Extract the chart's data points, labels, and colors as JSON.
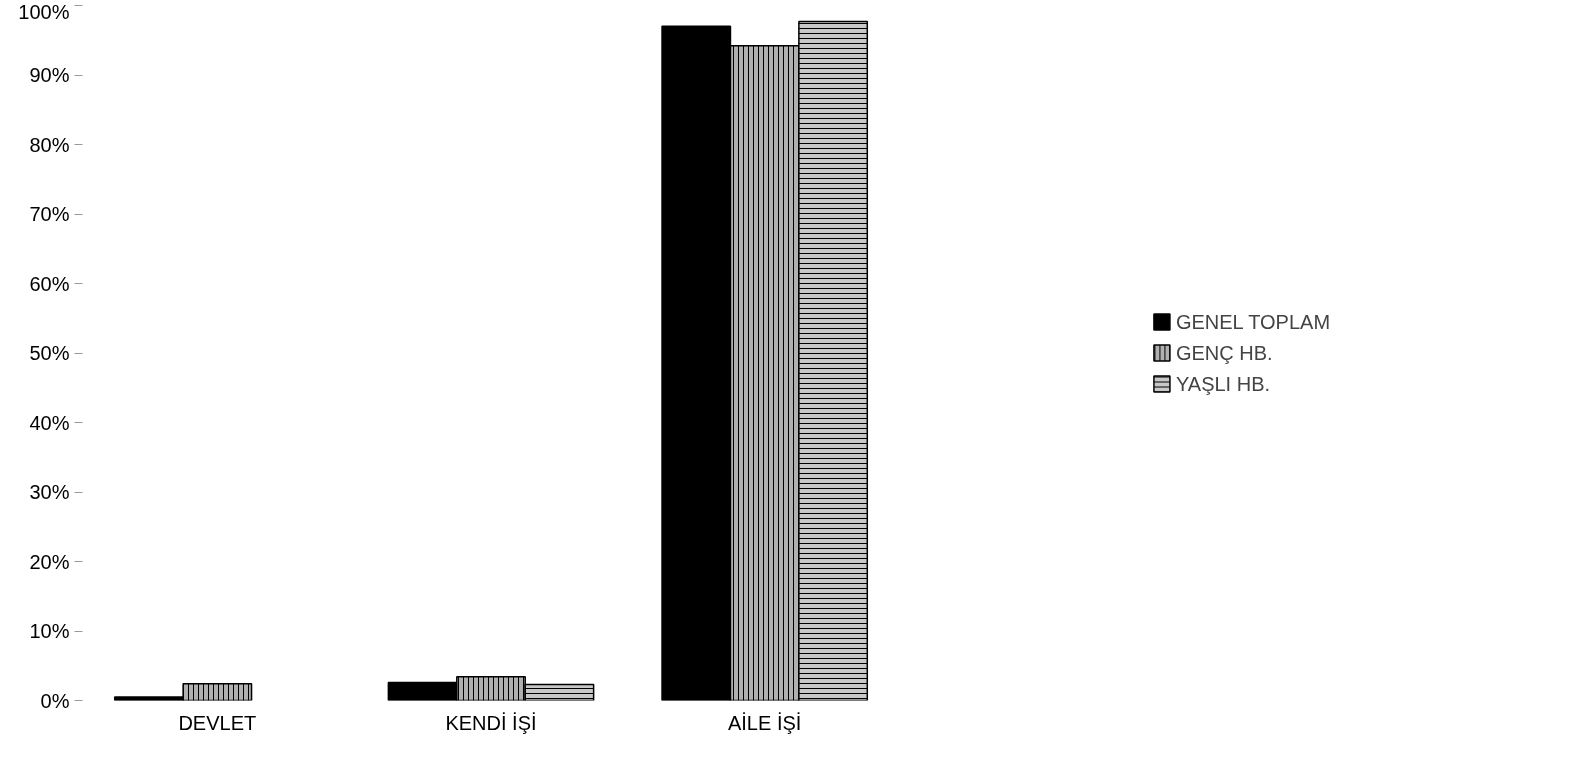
{
  "chart_data": {
    "type": "bar",
    "categories": [
      "DEVLET",
      "KENDİ İŞİ",
      "AİLE İŞİ"
    ],
    "series": [
      {
        "name": "GENEL TOPLAM",
        "color": "#000000",
        "values": [
          0.5,
          2.6,
          97
        ]
      },
      {
        "name": "GENÇ HB.",
        "color": "#b0b0b0",
        "values": [
          2.4,
          3.4,
          94.2
        ]
      },
      {
        "name": "YAŞLI HB.",
        "color": "#c8c8c8",
        "values": [
          null,
          2.3,
          97.7
        ]
      }
    ],
    "ylim": [
      0,
      100
    ],
    "yticks": [
      {
        "value": 0,
        "label": "0%"
      },
      {
        "value": 10,
        "label": "10%"
      },
      {
        "value": 20,
        "label": "20%"
      },
      {
        "value": 30,
        "label": "30%"
      },
      {
        "value": 40,
        "label": "40%"
      },
      {
        "value": 50,
        "label": "50%"
      },
      {
        "value": 60,
        "label": "60%"
      },
      {
        "value": 70,
        "label": "70%"
      },
      {
        "value": 80,
        "label": "80%"
      },
      {
        "value": 90,
        "label": "90%"
      },
      {
        "value": 100,
        "label": "100%"
      }
    ],
    "legend": "right",
    "grid": false
  }
}
